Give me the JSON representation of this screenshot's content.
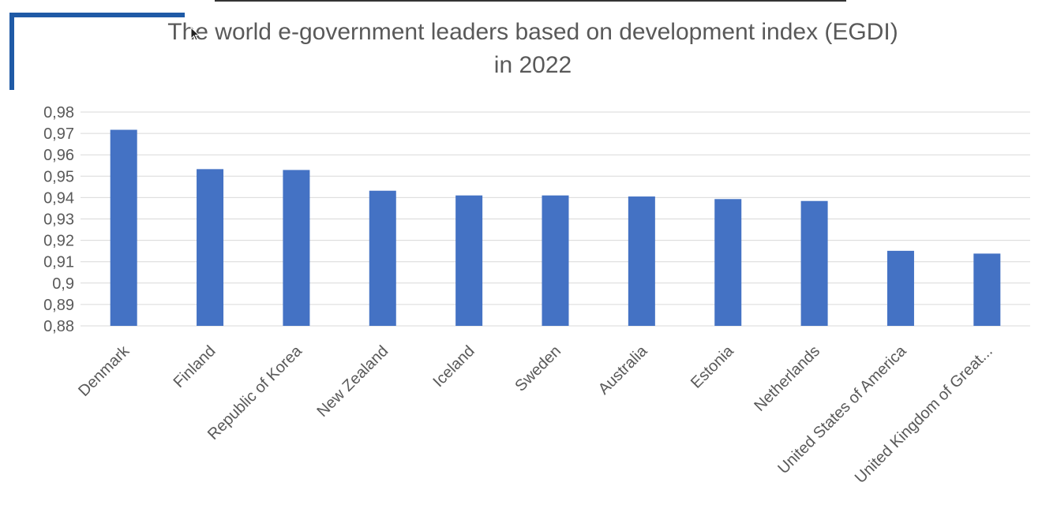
{
  "chart_data": {
    "type": "bar",
    "title_line1": "The world e-government leaders based on development index (EGDI)",
    "title_line2": "in 2022",
    "categories": [
      "Denmark",
      "Finland",
      "Republic of Korea",
      "New Zealand",
      "Iceland",
      "Sweden",
      "Australia",
      "Estonia",
      "Netherlands",
      "United States of America",
      "United Kingdom of Great..."
    ],
    "values": [
      0.9717,
      0.9533,
      0.9529,
      0.9432,
      0.941,
      0.941,
      0.9405,
      0.9393,
      0.9384,
      0.9151,
      0.9138
    ],
    "ylim": [
      0.88,
      0.98
    ],
    "ytick_step": 0.01,
    "ytick_labels": [
      "0,88",
      "0,89",
      "0,9",
      "0,91",
      "0,92",
      "0,93",
      "0,94",
      "0,95",
      "0,96",
      "0,97",
      "0,98"
    ],
    "bar_color": "#4472c4",
    "grid": true,
    "legend": "none"
  },
  "decor": {
    "bracket_color": "#1f5aa6",
    "cursor_icon": "arrow-cursor-icon"
  }
}
